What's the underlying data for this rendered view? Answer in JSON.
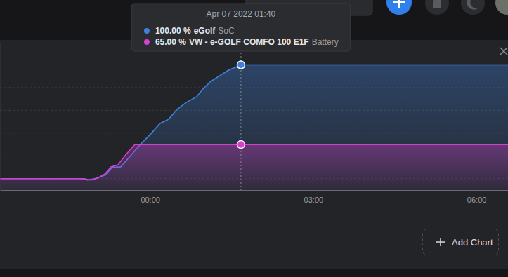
{
  "chart_data": {
    "type": "line",
    "grid": true,
    "tick_labels": "x",
    "xlim": [
      -2.76,
      6.58
    ],
    "xticks": [
      {
        "value": 0,
        "label": "00:00"
      },
      {
        "value": 3,
        "label": "03:00"
      },
      {
        "value": 6,
        "label": "06:00"
      }
    ],
    "ylim": [
      45,
      110
    ],
    "yticks": [
      50,
      60,
      70,
      80,
      90,
      100
    ],
    "series": [
      {
        "name": "eGolf",
        "attribute": "SoC",
        "color": "#3f80dd",
        "x": [
          -2.76,
          -1.28,
          -1.15,
          -1.02,
          -0.83,
          -0.7,
          -0.54,
          -0.37,
          -0.18,
          0.01,
          0.18,
          0.34,
          0.49,
          0.66,
          0.85,
          0.98,
          1.11,
          1.27,
          1.43,
          1.67,
          6.58
        ],
        "values": [
          50,
          50,
          49.4,
          50,
          51.5,
          54.9,
          55.2,
          59.8,
          65,
          69.6,
          74.2,
          76.1,
          80.3,
          83.4,
          85.9,
          89.6,
          92.6,
          95.1,
          97.5,
          100,
          100
        ]
      },
      {
        "name": "VW - e-GOLF COMFO 100 E1F",
        "attribute": "Battery",
        "color": "#d93fcf",
        "x": [
          -2.76,
          -1.21,
          -1.09,
          -0.96,
          -0.83,
          -0.72,
          -0.59,
          -0.44,
          -0.28,
          6.58
        ],
        "values": [
          50,
          50,
          49.4,
          50.3,
          52.1,
          55.2,
          56.1,
          60.7,
          65,
          65
        ]
      }
    ],
    "tooltip": {
      "title": "Apr 07 2022 01:40",
      "x": 1.67,
      "values": [
        100,
        65
      ],
      "value_labels": [
        "100.00 %",
        "65.00 %"
      ]
    }
  },
  "page": {
    "add_button": "Add Chart"
  }
}
